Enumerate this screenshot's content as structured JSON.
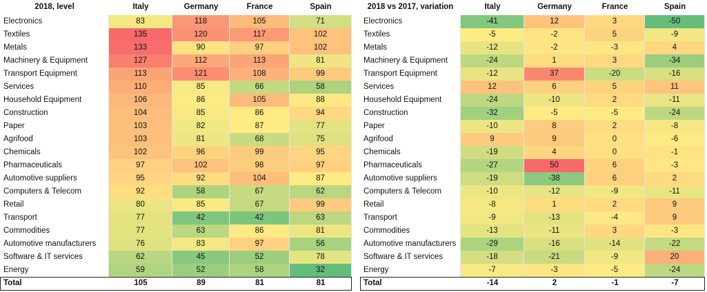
{
  "tables": [
    {
      "title": "2018, level",
      "columns": [
        "Italy",
        "Germany",
        "France",
        "Spain"
      ],
      "rows": [
        {
          "label": "Electronics",
          "values": [
            83,
            118,
            105,
            71
          ]
        },
        {
          "label": "Textiles",
          "values": [
            135,
            120,
            117,
            102
          ]
        },
        {
          "label": "Metals",
          "values": [
            133,
            90,
            97,
            102
          ]
        },
        {
          "label": "Machinery & Equipment",
          "values": [
            127,
            112,
            113,
            81
          ]
        },
        {
          "label": "Transport Equipment",
          "values": [
            113,
            121,
            108,
            99
          ]
        },
        {
          "label": "Services",
          "values": [
            110,
            85,
            66,
            58
          ]
        },
        {
          "label": "Household Equipment",
          "values": [
            106,
            86,
            105,
            88
          ]
        },
        {
          "label": "Construction",
          "values": [
            104,
            85,
            86,
            94
          ]
        },
        {
          "label": "Paper",
          "values": [
            103,
            82,
            87,
            77
          ]
        },
        {
          "label": "Agrifood",
          "values": [
            103,
            81,
            68,
            75
          ]
        },
        {
          "label": "Chemicals",
          "values": [
            102,
            96,
            99,
            95
          ]
        },
        {
          "label": "Pharmaceuticals",
          "values": [
            97,
            102,
            98,
            97
          ]
        },
        {
          "label": "Automotive suppliers",
          "values": [
            95,
            92,
            104,
            87
          ]
        },
        {
          "label": "Computers & Telecom",
          "values": [
            92,
            58,
            67,
            62
          ]
        },
        {
          "label": "Retail",
          "values": [
            80,
            85,
            67,
            99
          ]
        },
        {
          "label": "Transport",
          "values": [
            77,
            42,
            42,
            63
          ]
        },
        {
          "label": "Commodities",
          "values": [
            77,
            63,
            86,
            81
          ]
        },
        {
          "label": "Automotive manufacturers",
          "values": [
            76,
            83,
            97,
            56
          ]
        },
        {
          "label": "Software & IT services",
          "values": [
            62,
            45,
            52,
            78
          ]
        },
        {
          "label": "Energy",
          "values": [
            59,
            52,
            58,
            32
          ]
        }
      ],
      "total": {
        "label": "Total",
        "values": [
          105,
          89,
          81,
          81
        ]
      }
    },
    {
      "title": "2018 vs 2017, variation",
      "columns": [
        "Italy",
        "Germany",
        "France",
        "Spain"
      ],
      "rows": [
        {
          "label": "Electronics",
          "values": [
            -41,
            12,
            3,
            -50
          ]
        },
        {
          "label": "Textiles",
          "values": [
            -5,
            -2,
            5,
            -9
          ]
        },
        {
          "label": "Metals",
          "values": [
            -12,
            -2,
            -3,
            4
          ]
        },
        {
          "label": "Machinery & Equipment",
          "values": [
            -24,
            1,
            3,
            -34
          ]
        },
        {
          "label": "Transport Equipment",
          "values": [
            -12,
            37,
            -20,
            -16
          ]
        },
        {
          "label": "Services",
          "values": [
            12,
            6,
            5,
            11
          ]
        },
        {
          "label": "Household Equipment",
          "values": [
            -24,
            -10,
            2,
            -11
          ]
        },
        {
          "label": "Construction",
          "values": [
            -32,
            -5,
            -5,
            -24
          ]
        },
        {
          "label": "Paper",
          "values": [
            -10,
            8,
            2,
            -8
          ]
        },
        {
          "label": "Agrifood",
          "values": [
            9,
            9,
            0,
            -6
          ]
        },
        {
          "label": "Chemicals",
          "values": [
            -19,
            4,
            0,
            -1
          ]
        },
        {
          "label": "Pharmaceuticals",
          "values": [
            -27,
            50,
            6,
            -3
          ]
        },
        {
          "label": "Automotive suppliers",
          "values": [
            -19,
            -38,
            6,
            2
          ]
        },
        {
          "label": "Computers & Telecom",
          "values": [
            -10,
            -12,
            -9,
            -11
          ]
        },
        {
          "label": "Retail",
          "values": [
            -8,
            1,
            2,
            9
          ]
        },
        {
          "label": "Transport",
          "values": [
            -9,
            -13,
            -4,
            9
          ]
        },
        {
          "label": "Commodities",
          "values": [
            -13,
            -11,
            3,
            -3
          ]
        },
        {
          "label": "Automotive manufacturers",
          "values": [
            -29,
            -16,
            -14,
            -22
          ]
        },
        {
          "label": "Software & IT services",
          "values": [
            -18,
            -21,
            -9,
            20
          ]
        },
        {
          "label": "Energy",
          "values": [
            -7,
            -3,
            -5,
            -24
          ]
        }
      ],
      "total": {
        "label": "Total",
        "values": [
          -14,
          2,
          -1,
          -7
        ]
      }
    }
  ]
}
